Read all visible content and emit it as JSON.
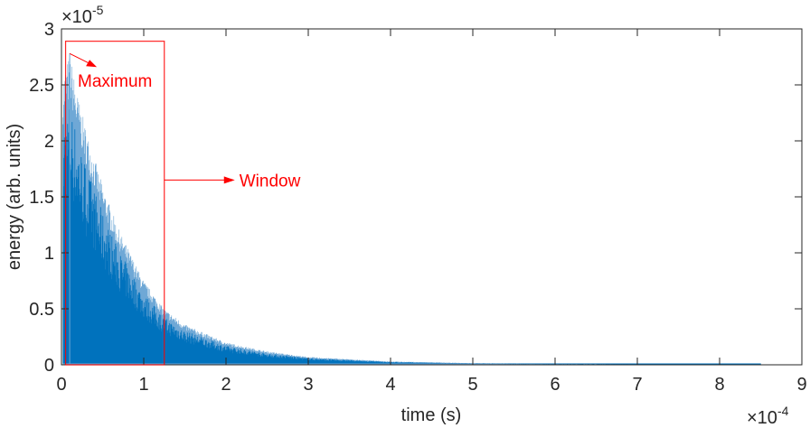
{
  "chart_data": {
    "type": "area",
    "xlabel": "time (s)",
    "ylabel": "energy (arb. units)",
    "x_multiplier": "×10-4",
    "x_multiplier_base": "×10",
    "x_multiplier_exp": "-4",
    "y_multiplier_base": "×10",
    "y_multiplier_exp": "-5",
    "xlim": [
      0,
      9
    ],
    "ylim": [
      0,
      3
    ],
    "x_ticks": [
      "0",
      "1",
      "2",
      "3",
      "4",
      "5",
      "6",
      "7",
      "8",
      "9"
    ],
    "y_ticks": [
      "0",
      "0.5",
      "1",
      "1.5",
      "2",
      "2.5",
      "3"
    ],
    "grid": false,
    "series_color": "#0072bd",
    "envelope": {
      "x": [
        0.03,
        0.1,
        0.2,
        0.3,
        0.5,
        0.7,
        1.0,
        1.25,
        1.5,
        2.0,
        2.5,
        3.0,
        4.0,
        5.0,
        6.0,
        7.0,
        8.5
      ],
      "y": [
        2.6,
        2.78,
        2.4,
        2.1,
        1.6,
        1.2,
        0.75,
        0.5,
        0.36,
        0.2,
        0.12,
        0.07,
        0.03,
        0.015,
        0.008,
        0.005,
        0.003
      ]
    },
    "annotations": {
      "color": "#ff0000",
      "maximum": {
        "label": "Maximum",
        "x": 0.1,
        "y": 2.78
      },
      "window": {
        "label": "Window",
        "x_start": 0.05,
        "x_end": 1.25,
        "y_top": 2.89
      }
    }
  }
}
